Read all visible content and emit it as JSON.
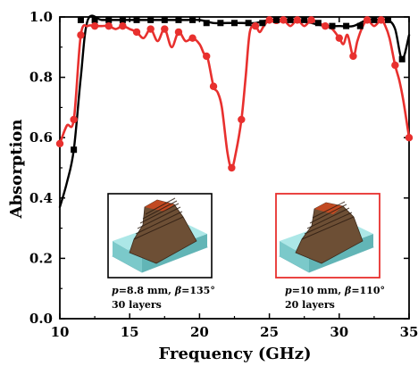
{
  "chart_data": {
    "type": "line",
    "xlabel": "Frequency (GHz)",
    "ylabel": "Absorption",
    "xlim": [
      10,
      35
    ],
    "ylim": [
      0.0,
      1.0
    ],
    "xticks": [
      "10",
      "15",
      "20",
      "25",
      "30",
      "35"
    ],
    "yticks": [
      "0.0",
      "0.2",
      "0.4",
      "0.6",
      "0.8",
      "1.0"
    ],
    "grid": false,
    "series": [
      {
        "color": "#000000",
        "marker": "square",
        "x": [
          10.0,
          10.5,
          11.0,
          11.5,
          12.0,
          13.0,
          14.0,
          15.0,
          16.0,
          17.0,
          18.0,
          19.0,
          20.0,
          21.0,
          22.0,
          23.0,
          24.0,
          25.0,
          26.0,
          27.0,
          28.0,
          29.0,
          30.0,
          31.0,
          32.0,
          33.0,
          33.5,
          34.0,
          34.5,
          35.0
        ],
        "y": [
          0.37,
          0.45,
          0.56,
          0.8,
          0.99,
          0.99,
          0.99,
          0.99,
          0.99,
          0.99,
          0.99,
          0.99,
          0.99,
          0.98,
          0.98,
          0.98,
          0.98,
          0.99,
          0.99,
          0.99,
          0.98,
          0.97,
          0.97,
          0.97,
          0.99,
          0.99,
          0.99,
          0.96,
          0.86,
          0.94
        ],
        "marker_x": [
          11.0,
          11.5,
          12.5,
          13.5,
          14.5,
          15.5,
          16.5,
          17.5,
          18.5,
          19.5,
          20.5,
          21.5,
          22.5,
          23.5,
          24.5,
          25.5,
          26.5,
          27.5,
          28.5,
          29.5,
          30.5,
          31.5,
          32.5,
          33.5,
          34.5
        ],
        "marker_y": [
          0.56,
          0.99,
          0.99,
          0.99,
          0.99,
          0.99,
          0.99,
          0.99,
          0.99,
          0.99,
          0.98,
          0.98,
          0.98,
          0.98,
          0.98,
          0.99,
          0.99,
          0.99,
          0.98,
          0.97,
          0.97,
          0.97,
          0.99,
          0.99,
          0.86
        ]
      },
      {
        "color": "#e8302e",
        "marker": "circle",
        "x": [
          10.0,
          10.5,
          11.0,
          11.5,
          12.0,
          12.5,
          13.0,
          13.5,
          14.0,
          14.5,
          15.0,
          15.5,
          16.0,
          16.5,
          17.0,
          17.5,
          18.0,
          18.5,
          19.0,
          19.5,
          20.0,
          20.3,
          20.6,
          21.0,
          21.3,
          21.6,
          22.0,
          22.3,
          22.6,
          23.0,
          23.3,
          23.6,
          24.0,
          24.3,
          24.6,
          25.0,
          25.5,
          26.0,
          26.5,
          27.0,
          27.5,
          28.0,
          28.5,
          29.0,
          29.5,
          30.0,
          30.3,
          30.6,
          31.0,
          31.3,
          31.6,
          32.0,
          32.5,
          33.0,
          33.3,
          33.6,
          34.0,
          34.3,
          34.6,
          35.0
        ],
        "y": [
          0.58,
          0.64,
          0.66,
          0.94,
          0.97,
          0.97,
          0.97,
          0.97,
          0.96,
          0.97,
          0.96,
          0.95,
          0.93,
          0.96,
          0.92,
          0.96,
          0.9,
          0.95,
          0.92,
          0.93,
          0.91,
          0.88,
          0.86,
          0.77,
          0.75,
          0.7,
          0.55,
          0.5,
          0.55,
          0.66,
          0.8,
          0.95,
          0.97,
          0.95,
          0.97,
          0.99,
          0.98,
          0.99,
          0.97,
          0.99,
          0.97,
          0.99,
          0.98,
          0.97,
          0.96,
          0.93,
          0.91,
          0.94,
          0.87,
          0.92,
          0.96,
          0.99,
          0.97,
          0.99,
          0.97,
          0.93,
          0.84,
          0.79,
          0.72,
          0.6
        ],
        "marker_x": [
          10.0,
          11.0,
          11.5,
          12.5,
          13.5,
          14.5,
          15.5,
          16.5,
          17.5,
          18.5,
          19.5,
          20.5,
          21.0,
          22.3,
          23.0,
          24.0,
          25.0,
          26.0,
          27.0,
          28.0,
          29.0,
          30.0,
          31.0,
          32.0,
          33.0,
          34.0,
          35.0
        ],
        "marker_y": [
          0.58,
          0.66,
          0.94,
          0.97,
          0.97,
          0.97,
          0.95,
          0.96,
          0.96,
          0.95,
          0.93,
          0.87,
          0.77,
          0.5,
          0.66,
          0.97,
          0.99,
          0.99,
          0.99,
          0.99,
          0.97,
          0.93,
          0.87,
          0.99,
          0.99,
          0.84,
          0.6
        ]
      }
    ],
    "insets": [
      {
        "border_color": "#000000",
        "caption_line1_parts": [
          "p",
          "=8.8 mm, ",
          "β",
          "=135°"
        ],
        "caption_line2": "30 layers"
      },
      {
        "border_color": "#e8302e",
        "caption_line1_parts": [
          "p",
          "=10 mm, ",
          "β",
          "=110°"
        ],
        "caption_line2": "20 layers"
      }
    ]
  }
}
